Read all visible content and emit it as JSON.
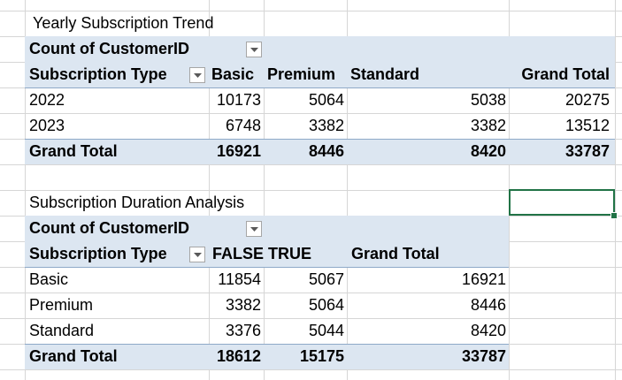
{
  "pivot1": {
    "title": "Yearly Subscription Trend",
    "value_field": "Count of CustomerID",
    "row_field": "Subscription Type",
    "columns": [
      "Basic",
      "Premium",
      "Standard",
      "Grand Total"
    ],
    "rows": [
      {
        "label": "2022",
        "values": [
          "10173",
          "5064",
          "5038",
          "20275"
        ]
      },
      {
        "label": "2023",
        "values": [
          "6748",
          "3382",
          "3382",
          "13512"
        ]
      }
    ],
    "total": {
      "label": "Grand Total",
      "values": [
        "16921",
        "8446",
        "8420",
        "33787"
      ]
    }
  },
  "pivot2": {
    "title": "Subscription Duration Analysis",
    "value_field": "Count of CustomerID",
    "row_field": "Subscription Type",
    "columns": [
      "FALSE",
      "TRUE",
      "Grand Total"
    ],
    "rows": [
      {
        "label": "Basic",
        "values": [
          "11854",
          "5067",
          "16921"
        ]
      },
      {
        "label": "Premium",
        "values": [
          "3382",
          "5064",
          "8446"
        ]
      },
      {
        "label": "Standard",
        "values": [
          "3376",
          "5044",
          "8420"
        ]
      }
    ],
    "total": {
      "label": "Grand Total",
      "values": [
        "18612",
        "15175",
        "33787"
      ]
    }
  },
  "icons": {
    "filter_dropdown": "chevron-down-icon"
  },
  "colors": {
    "pivot_header_band": "#dce6f1",
    "selection": "#217346"
  }
}
